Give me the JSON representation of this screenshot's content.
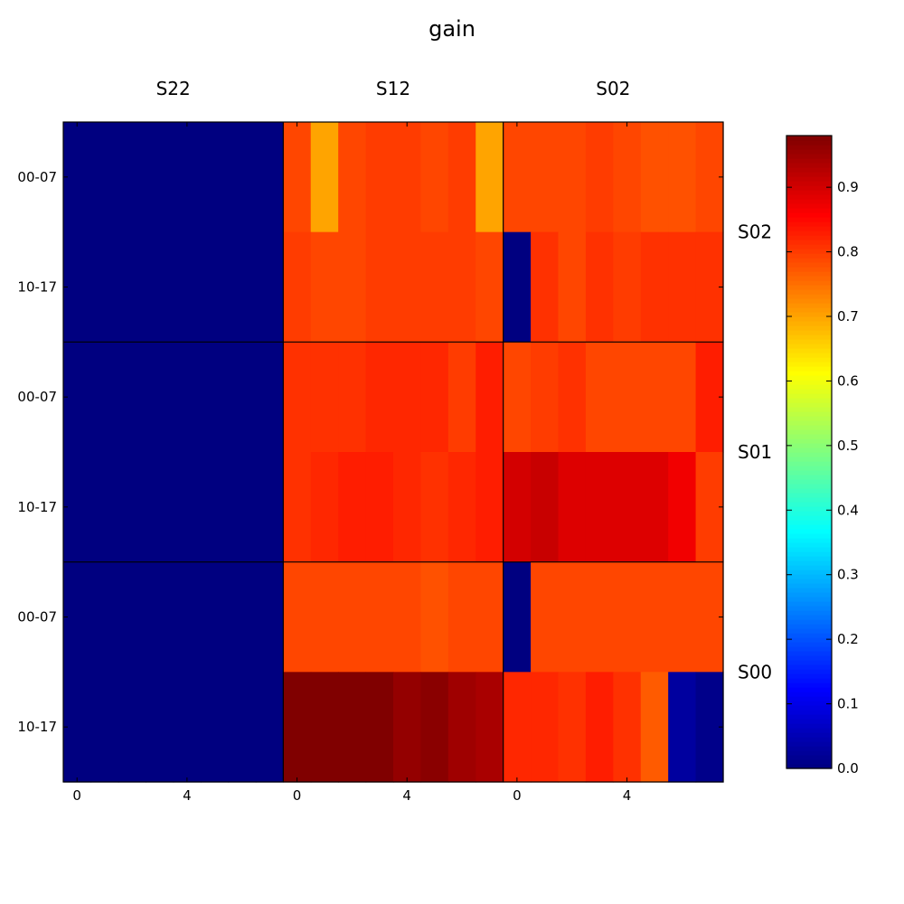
{
  "chart_data": {
    "type": "heatmap",
    "title": "gain",
    "column_blocks": [
      "S22",
      "S12",
      "S02"
    ],
    "row_blocks": [
      "S02",
      "S01",
      "S00"
    ],
    "row_tick_labels": [
      "00-07",
      "10-17"
    ],
    "x_tick_labels": [
      "0",
      "4"
    ],
    "x_tick_values": [
      0,
      4
    ],
    "subrows_per_block": 2,
    "cols_per_block": 8,
    "colormap": "jet",
    "colorbar": {
      "range": [
        0.0,
        0.98
      ],
      "ticks": [
        "0.0",
        "0.1",
        "0.2",
        "0.3",
        "0.4",
        "0.5",
        "0.6",
        "0.7",
        "0.8",
        "0.9"
      ],
      "tick_values": [
        0.0,
        0.1,
        0.2,
        0.3,
        0.4,
        0.5,
        0.6,
        0.7,
        0.8,
        0.9
      ]
    },
    "values": [
      [
        0,
        0,
        0,
        0,
        0,
        0,
        0,
        0,
        0.79,
        0.7,
        0.79,
        0.8,
        0.8,
        0.79,
        0.8,
        0.7,
        0.79,
        0.79,
        0.79,
        0.8,
        0.79,
        0.78,
        0.78,
        0.79
      ],
      [
        0,
        0,
        0,
        0,
        0,
        0,
        0,
        0,
        0.8,
        0.79,
        0.79,
        0.8,
        0.8,
        0.8,
        0.8,
        0.79,
        0.0,
        0.81,
        0.79,
        0.81,
        0.8,
        0.81,
        0.81,
        0.81
      ],
      [
        0,
        0,
        0,
        0,
        0,
        0,
        0,
        0,
        0.81,
        0.81,
        0.81,
        0.82,
        0.82,
        0.82,
        0.8,
        0.83,
        0.79,
        0.8,
        0.81,
        0.79,
        0.79,
        0.79,
        0.79,
        0.83
      ],
      [
        0,
        0,
        0,
        0,
        0,
        0,
        0,
        0,
        0.81,
        0.82,
        0.83,
        0.83,
        0.82,
        0.81,
        0.82,
        0.83,
        0.9,
        0.91,
        0.89,
        0.89,
        0.89,
        0.89,
        0.87,
        0.8
      ],
      [
        0,
        0,
        0,
        0,
        0,
        0,
        0,
        0,
        0.79,
        0.79,
        0.79,
        0.79,
        0.79,
        0.78,
        0.79,
        0.79,
        0.0,
        0.79,
        0.79,
        0.79,
        0.79,
        0.79,
        0.79,
        0.79
      ],
      [
        0,
        0,
        0,
        0,
        0,
        0,
        0,
        0,
        0.98,
        0.98,
        0.98,
        0.98,
        0.96,
        0.97,
        0.95,
        0.94,
        0.82,
        0.82,
        0.81,
        0.83,
        0.81,
        0.77,
        0.03,
        0.01
      ]
    ]
  }
}
